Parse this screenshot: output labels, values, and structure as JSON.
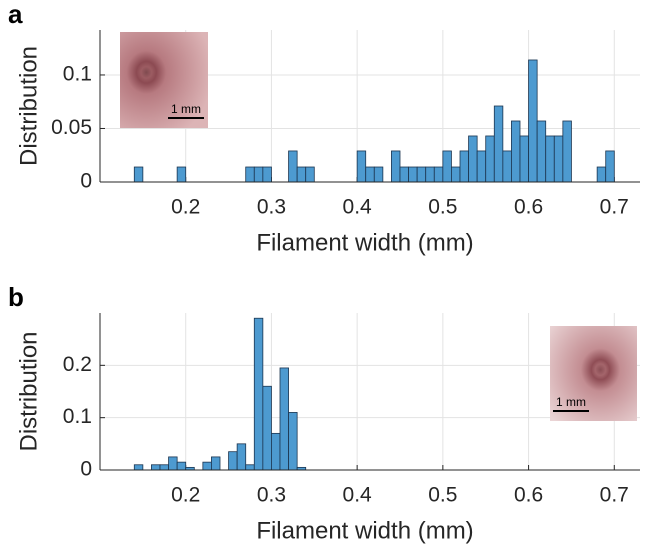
{
  "chart_data": [
    {
      "type": "histogram",
      "panel_label": "a",
      "xlabel": "Filament width (mm)",
      "ylabel": "Distribution",
      "inset_label": "1 mm",
      "color": "#4d9ad0",
      "edgecolor": "#1c3550",
      "grid": true,
      "bins": [
        0.14,
        0.15,
        0.16,
        0.17,
        0.18,
        0.19,
        0.2,
        0.21,
        0.22,
        0.23,
        0.24,
        0.25,
        0.26,
        0.27,
        0.28,
        0.29,
        0.3,
        0.31,
        0.32,
        0.33,
        0.34,
        0.35,
        0.36,
        0.37,
        0.38,
        0.39,
        0.4,
        0.41,
        0.42,
        0.43,
        0.44,
        0.45,
        0.46,
        0.47,
        0.48,
        0.49,
        0.5,
        0.51,
        0.52,
        0.53,
        0.54,
        0.55,
        0.56,
        0.57,
        0.58,
        0.59,
        0.6,
        0.61,
        0.62,
        0.63,
        0.64,
        0.65,
        0.66,
        0.67,
        0.68,
        0.69,
        0.7
      ],
      "values": [
        0.014,
        0,
        0,
        0,
        0,
        0.014,
        0,
        0,
        0,
        0,
        0,
        0,
        0,
        0.014,
        0.014,
        0.014,
        0,
        0,
        0.029,
        0.014,
        0.014,
        0,
        0,
        0,
        0,
        0,
        0.029,
        0.014,
        0.014,
        0,
        0.029,
        0.014,
        0.014,
        0.014,
        0.014,
        0.014,
        0.029,
        0.014,
        0.029,
        0.043,
        0.029,
        0.043,
        0.071,
        0.029,
        0.057,
        0.043,
        0.114,
        0.057,
        0.043,
        0.043,
        0.057,
        0,
        0,
        0,
        0.014,
        0.029
      ],
      "xlim": [
        0.1,
        0.73
      ],
      "xticks": [
        0.2,
        0.3,
        0.4,
        0.5,
        0.6,
        0.7
      ],
      "ylim": [
        0,
        0.142
      ],
      "yticks": [
        0,
        0.05,
        0.1
      ]
    },
    {
      "type": "histogram",
      "panel_label": "b",
      "xlabel": "Filament width (mm)",
      "ylabel": "Distribution",
      "inset_label": "1 mm",
      "color": "#4d9ad0",
      "edgecolor": "#1c3550",
      "grid": true,
      "bins": [
        0.14,
        0.15,
        0.16,
        0.17,
        0.18,
        0.19,
        0.2,
        0.21,
        0.22,
        0.23,
        0.24,
        0.25,
        0.26,
        0.27,
        0.28,
        0.29,
        0.3,
        0.31,
        0.32,
        0.33,
        0.34
      ],
      "values": [
        0.01,
        0,
        0.01,
        0.01,
        0.025,
        0.015,
        0.005,
        0,
        0.015,
        0.025,
        0,
        0.035,
        0.05,
        0.01,
        0.29,
        0.16,
        0.07,
        0.195,
        0.11,
        0.005
      ],
      "xlim": [
        0.1,
        0.73
      ],
      "xticks": [
        0.2,
        0.3,
        0.4,
        0.5,
        0.6,
        0.7
      ],
      "ylim": [
        0,
        0.3
      ],
      "yticks": [
        0,
        0.1,
        0.2
      ]
    }
  ]
}
